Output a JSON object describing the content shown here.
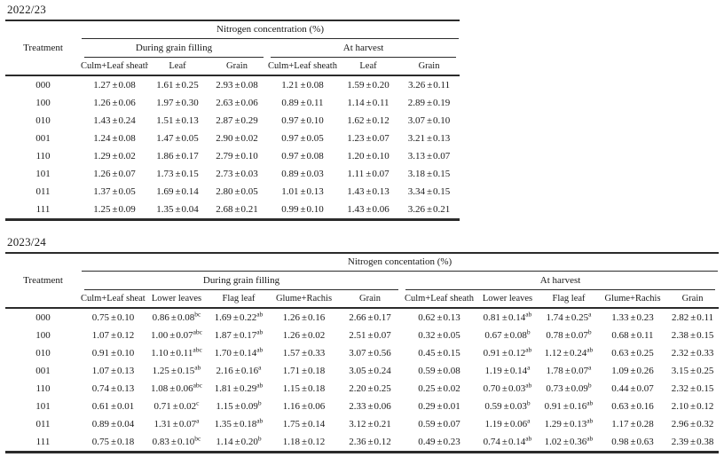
{
  "tables": [
    {
      "season": "2022/23",
      "spanner": "Nitrogen concentration (%)",
      "row_header": "Treatment",
      "groups": [
        {
          "label": "During grain filling",
          "columns": [
            "Culm+Leaf sheath",
            "Leaf",
            "Grain"
          ]
        },
        {
          "label": "At harvest",
          "columns": [
            "Culm+Leaf sheath",
            "Leaf",
            "Grain"
          ]
        }
      ],
      "rows": [
        {
          "treatment": "000",
          "cells": [
            {
              "m": "1.27",
              "s": "0.08",
              "sup": ""
            },
            {
              "m": "1.61",
              "s": "0.25",
              "sup": ""
            },
            {
              "m": "2.93",
              "s": "0.08",
              "sup": ""
            },
            {
              "m": "1.21",
              "s": "0.08",
              "sup": ""
            },
            {
              "m": "1.59",
              "s": "0.20",
              "sup": ""
            },
            {
              "m": "3.26",
              "s": "0.11",
              "sup": ""
            }
          ]
        },
        {
          "treatment": "100",
          "cells": [
            {
              "m": "1.26",
              "s": "0.06",
              "sup": ""
            },
            {
              "m": "1.97",
              "s": "0.30",
              "sup": ""
            },
            {
              "m": "2.63",
              "s": "0.06",
              "sup": ""
            },
            {
              "m": "0.89",
              "s": "0.11",
              "sup": ""
            },
            {
              "m": "1.14",
              "s": "0.11",
              "sup": ""
            },
            {
              "m": "2.89",
              "s": "0.19",
              "sup": ""
            }
          ]
        },
        {
          "treatment": "010",
          "cells": [
            {
              "m": "1.43",
              "s": "0.24",
              "sup": ""
            },
            {
              "m": "1.51",
              "s": "0.13",
              "sup": ""
            },
            {
              "m": "2.87",
              "s": "0.29",
              "sup": ""
            },
            {
              "m": "0.97",
              "s": "0.10",
              "sup": ""
            },
            {
              "m": "1.62",
              "s": "0.12",
              "sup": ""
            },
            {
              "m": "3.07",
              "s": "0.10",
              "sup": ""
            }
          ]
        },
        {
          "treatment": "001",
          "cells": [
            {
              "m": "1.24",
              "s": "0.08",
              "sup": ""
            },
            {
              "m": "1.47",
              "s": "0.05",
              "sup": ""
            },
            {
              "m": "2.90",
              "s": "0.02",
              "sup": ""
            },
            {
              "m": "0.97",
              "s": "0.05",
              "sup": ""
            },
            {
              "m": "1.23",
              "s": "0.07",
              "sup": ""
            },
            {
              "m": "3.21",
              "s": "0.13",
              "sup": ""
            }
          ]
        },
        {
          "treatment": "110",
          "cells": [
            {
              "m": "1.29",
              "s": "0.02",
              "sup": ""
            },
            {
              "m": "1.86",
              "s": "0.17",
              "sup": ""
            },
            {
              "m": "2.79",
              "s": "0.10",
              "sup": ""
            },
            {
              "m": "0.97",
              "s": "0.08",
              "sup": ""
            },
            {
              "m": "1.20",
              "s": "0.10",
              "sup": ""
            },
            {
              "m": "3.13",
              "s": "0.07",
              "sup": ""
            }
          ]
        },
        {
          "treatment": "101",
          "cells": [
            {
              "m": "1.26",
              "s": "0.07",
              "sup": ""
            },
            {
              "m": "1.73",
              "s": "0.15",
              "sup": ""
            },
            {
              "m": "2.73",
              "s": "0.03",
              "sup": ""
            },
            {
              "m": "0.89",
              "s": "0.03",
              "sup": ""
            },
            {
              "m": "1.11",
              "s": "0.07",
              "sup": ""
            },
            {
              "m": "3.18",
              "s": "0.15",
              "sup": ""
            }
          ]
        },
        {
          "treatment": "011",
          "cells": [
            {
              "m": "1.37",
              "s": "0.05",
              "sup": ""
            },
            {
              "m": "1.69",
              "s": "0.14",
              "sup": ""
            },
            {
              "m": "2.80",
              "s": "0.05",
              "sup": ""
            },
            {
              "m": "1.01",
              "s": "0.13",
              "sup": ""
            },
            {
              "m": "1.43",
              "s": "0.13",
              "sup": ""
            },
            {
              "m": "3.34",
              "s": "0.15",
              "sup": ""
            }
          ]
        },
        {
          "treatment": "111",
          "cells": [
            {
              "m": "1.25",
              "s": "0.09",
              "sup": ""
            },
            {
              "m": "1.35",
              "s": "0.04",
              "sup": ""
            },
            {
              "m": "2.68",
              "s": "0.21",
              "sup": ""
            },
            {
              "m": "0.99",
              "s": "0.10",
              "sup": ""
            },
            {
              "m": "1.43",
              "s": "0.06",
              "sup": ""
            },
            {
              "m": "3.26",
              "s": "0.21",
              "sup": ""
            }
          ]
        }
      ]
    },
    {
      "season": "2023/24",
      "spanner": "Nitrogen concentation (%)",
      "row_header": "Treatment",
      "groups": [
        {
          "label": "During grain filling",
          "columns": [
            "Culm+Leaf sheath",
            "Lower leaves",
            "Flag leaf",
            "Glume+Rachis",
            "Grain"
          ]
        },
        {
          "label": "At harvest",
          "columns": [
            "Culm+Leaf sheath",
            "Lower leaves",
            "Flag leaf",
            "Glume+Rachis",
            "Grain"
          ]
        }
      ],
      "rows": [
        {
          "treatment": "000",
          "cells": [
            {
              "m": "0.75",
              "s": "0.10",
              "sup": ""
            },
            {
              "m": "0.86",
              "s": "0.08",
              "sup": "bc"
            },
            {
              "m": "1.69",
              "s": "0.22",
              "sup": "ab"
            },
            {
              "m": "1.26",
              "s": "0.16",
              "sup": ""
            },
            {
              "m": "2.66",
              "s": "0.17",
              "sup": ""
            },
            {
              "m": "0.62",
              "s": "0.13",
              "sup": ""
            },
            {
              "m": "0.81",
              "s": "0.14",
              "sup": "ab"
            },
            {
              "m": "1.74",
              "s": "0.25",
              "sup": "a"
            },
            {
              "m": "1.33",
              "s": "0.23",
              "sup": ""
            },
            {
              "m": "2.82",
              "s": "0.11",
              "sup": ""
            }
          ]
        },
        {
          "treatment": "100",
          "cells": [
            {
              "m": "1.07",
              "s": "0.12",
              "sup": ""
            },
            {
              "m": "1.00",
              "s": "0.07",
              "sup": "abc"
            },
            {
              "m": "1.87",
              "s": "0.17",
              "sup": "ab"
            },
            {
              "m": "1.26",
              "s": "0.02",
              "sup": ""
            },
            {
              "m": "2.51",
              "s": "0.07",
              "sup": ""
            },
            {
              "m": "0.32",
              "s": "0.05",
              "sup": ""
            },
            {
              "m": "0.67",
              "s": "0.08",
              "sup": "b"
            },
            {
              "m": "0.78",
              "s": "0.07",
              "sup": "b"
            },
            {
              "m": "0.68",
              "s": "0.11",
              "sup": ""
            },
            {
              "m": "2.38",
              "s": "0.15",
              "sup": ""
            }
          ]
        },
        {
          "treatment": "010",
          "cells": [
            {
              "m": "0.91",
              "s": "0.10",
              "sup": ""
            },
            {
              "m": "1.10",
              "s": "0.11",
              "sup": "abc"
            },
            {
              "m": "1.70",
              "s": "0.14",
              "sup": "ab"
            },
            {
              "m": "1.57",
              "s": "0.33",
              "sup": ""
            },
            {
              "m": "3.07",
              "s": "0.56",
              "sup": ""
            },
            {
              "m": "0.45",
              "s": "0.15",
              "sup": ""
            },
            {
              "m": "0.91",
              "s": "0.12",
              "sup": "ab"
            },
            {
              "m": "1.12",
              "s": "0.24",
              "sup": "ab"
            },
            {
              "m": "0.63",
              "s": "0.25",
              "sup": ""
            },
            {
              "m": "2.32",
              "s": "0.33",
              "sup": ""
            }
          ]
        },
        {
          "treatment": "001",
          "cells": [
            {
              "m": "1.07",
              "s": "0.13",
              "sup": ""
            },
            {
              "m": "1.25",
              "s": "0.15",
              "sup": "ab"
            },
            {
              "m": "2.16",
              "s": "0.16",
              "sup": "a"
            },
            {
              "m": "1.71",
              "s": "0.18",
              "sup": ""
            },
            {
              "m": "3.05",
              "s": "0.24",
              "sup": ""
            },
            {
              "m": "0.59",
              "s": "0.08",
              "sup": ""
            },
            {
              "m": "1.19",
              "s": "0.14",
              "sup": "a"
            },
            {
              "m": "1.78",
              "s": "0.07",
              "sup": "a"
            },
            {
              "m": "1.09",
              "s": "0.26",
              "sup": ""
            },
            {
              "m": "3.15",
              "s": "0.25",
              "sup": ""
            }
          ]
        },
        {
          "treatment": "110",
          "cells": [
            {
              "m": "0.74",
              "s": "0.13",
              "sup": ""
            },
            {
              "m": "1.08",
              "s": "0.06",
              "sup": "abc"
            },
            {
              "m": "1.81",
              "s": "0.29",
              "sup": "ab"
            },
            {
              "m": "1.15",
              "s": "0.18",
              "sup": ""
            },
            {
              "m": "2.20",
              "s": "0.25",
              "sup": ""
            },
            {
              "m": "0.25",
              "s": "0.02",
              "sup": ""
            },
            {
              "m": "0.70",
              "s": "0.03",
              "sup": "ab"
            },
            {
              "m": "0.73",
              "s": "0.09",
              "sup": "b"
            },
            {
              "m": "0.44",
              "s": "0.07",
              "sup": ""
            },
            {
              "m": "2.32",
              "s": "0.15",
              "sup": ""
            }
          ]
        },
        {
          "treatment": "101",
          "cells": [
            {
              "m": "0.61",
              "s": "0.01",
              "sup": ""
            },
            {
              "m": "0.71",
              "s": "0.02",
              "sup": "c"
            },
            {
              "m": "1.15",
              "s": "0.09",
              "sup": "b"
            },
            {
              "m": "1.16",
              "s": "0.06",
              "sup": ""
            },
            {
              "m": "2.33",
              "s": "0.06",
              "sup": ""
            },
            {
              "m": "0.29",
              "s": "0.01",
              "sup": ""
            },
            {
              "m": "0.59",
              "s": "0.03",
              "sup": "b"
            },
            {
              "m": "0.91",
              "s": "0.16",
              "sup": "ab"
            },
            {
              "m": "0.63",
              "s": "0.16",
              "sup": ""
            },
            {
              "m": "2.10",
              "s": "0.12",
              "sup": ""
            }
          ]
        },
        {
          "treatment": "011",
          "cells": [
            {
              "m": "0.89",
              "s": "0.04",
              "sup": ""
            },
            {
              "m": "1.31",
              "s": "0.07",
              "sup": "a"
            },
            {
              "m": "1.35",
              "s": "0.18",
              "sup": "ab"
            },
            {
              "m": "1.75",
              "s": "0.14",
              "sup": ""
            },
            {
              "m": "3.12",
              "s": "0.21",
              "sup": ""
            },
            {
              "m": "0.59",
              "s": "0.07",
              "sup": ""
            },
            {
              "m": "1.19",
              "s": "0.06",
              "sup": "a"
            },
            {
              "m": "1.29",
              "s": "0.13",
              "sup": "ab"
            },
            {
              "m": "1.17",
              "s": "0.28",
              "sup": ""
            },
            {
              "m": "2.96",
              "s": "0.32",
              "sup": ""
            }
          ]
        },
        {
          "treatment": "111",
          "cells": [
            {
              "m": "0.75",
              "s": "0.18",
              "sup": ""
            },
            {
              "m": "0.83",
              "s": "0.10",
              "sup": "bc"
            },
            {
              "m": "1.14",
              "s": "0.20",
              "sup": "b"
            },
            {
              "m": "1.18",
              "s": "0.12",
              "sup": ""
            },
            {
              "m": "2.36",
              "s": "0.12",
              "sup": ""
            },
            {
              "m": "0.49",
              "s": "0.23",
              "sup": ""
            },
            {
              "m": "0.74",
              "s": "0.14",
              "sup": "ab"
            },
            {
              "m": "1.02",
              "s": "0.36",
              "sup": "ab"
            },
            {
              "m": "0.98",
              "s": "0.63",
              "sup": ""
            },
            {
              "m": "2.39",
              "s": "0.38",
              "sup": ""
            }
          ]
        }
      ]
    }
  ]
}
